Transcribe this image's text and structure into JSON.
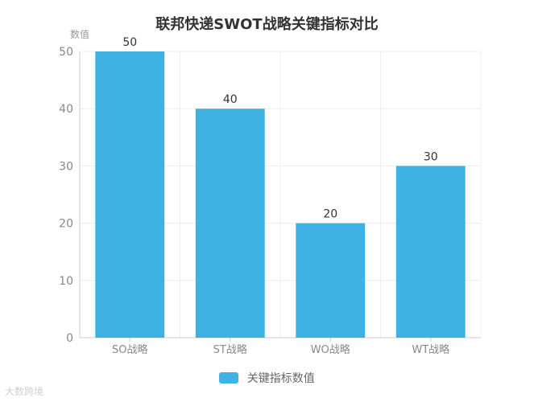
{
  "chart_data": {
    "type": "bar",
    "title": "联邦快递SWOT战略关键指标对比",
    "ylabel": "数值",
    "xlabel": "",
    "categories": [
      "SO战略",
      "ST战略",
      "WO战略",
      "WT战略"
    ],
    "series": [
      {
        "name": "关键指标数值",
        "values": [
          50,
          40,
          20,
          30
        ],
        "color": "#3EB2E2"
      }
    ],
    "ylim": [
      0,
      50
    ],
    "yticks": [
      0,
      10,
      20,
      30,
      40,
      50
    ],
    "grid": true,
    "legend_position": "bottom-center",
    "data_labels": true
  },
  "watermark": "大数跨境"
}
